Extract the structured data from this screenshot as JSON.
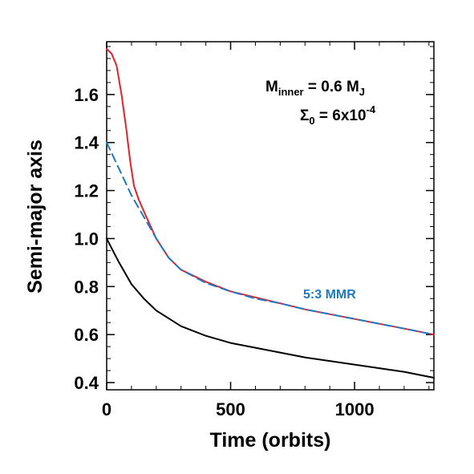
{
  "chart_data": {
    "type": "line",
    "title": "",
    "xlabel": "Time (orbits)",
    "ylabel": "Semi-major axis",
    "xlim": [
      0,
      1320
    ],
    "ylim": [
      0.37,
      1.82
    ],
    "xticks": [
      0,
      500,
      1000
    ],
    "yticks": [
      0.4,
      0.6,
      0.8,
      1.0,
      1.2,
      1.4,
      1.6
    ],
    "ytick_labels": [
      "0.4",
      "0.6",
      "0.8",
      "1.0",
      "1.2",
      "1.4",
      "1.6"
    ],
    "xtick_labels": [
      "0",
      "500",
      "1000"
    ],
    "grid": false,
    "annotations": {
      "mass": {
        "main": "M",
        "sub": "inner",
        "rest": " = 0.6 M",
        "sub2": "J"
      },
      "sigma": {
        "main": "Σ",
        "sub": "0",
        "rest": " = 6x10",
        "sup": "-4"
      },
      "resonance": "5:3 MMR"
    },
    "colors": {
      "outer": "#e8202a",
      "resonance": "#1f78c0",
      "inner": "#000000"
    },
    "series": [
      {
        "style": "solid",
        "color": "#e8202a",
        "x": [
          0,
          20,
          40,
          60,
          80,
          95,
          110,
          130,
          160,
          200,
          250,
          300,
          400,
          500,
          600,
          700,
          800,
          900,
          1000,
          1100,
          1200,
          1320
        ],
        "y": [
          1.79,
          1.77,
          1.72,
          1.6,
          1.45,
          1.32,
          1.22,
          1.16,
          1.09,
          1.0,
          0.92,
          0.87,
          0.82,
          0.78,
          0.755,
          0.73,
          0.705,
          0.685,
          0.665,
          0.645,
          0.625,
          0.6
        ]
      },
      {
        "style": "dashed",
        "color": "#1f78c0",
        "x": [
          0,
          50,
          100,
          150,
          200,
          250,
          300,
          400,
          500,
          600,
          700,
          800,
          900,
          1000,
          1100,
          1200,
          1320
        ],
        "y": [
          1.4,
          1.29,
          1.18,
          1.09,
          1.0,
          0.92,
          0.87,
          0.815,
          0.78,
          0.75,
          0.73,
          0.705,
          0.685,
          0.665,
          0.645,
          0.625,
          0.6
        ]
      },
      {
        "style": "solid",
        "color": "#000000",
        "x": [
          0,
          25,
          50,
          100,
          150,
          200,
          300,
          400,
          500,
          600,
          700,
          800,
          900,
          1000,
          1100,
          1200,
          1320
        ],
        "y": [
          1.0,
          0.95,
          0.9,
          0.81,
          0.75,
          0.7,
          0.635,
          0.595,
          0.565,
          0.545,
          0.525,
          0.505,
          0.49,
          0.475,
          0.46,
          0.445,
          0.42
        ]
      }
    ]
  }
}
